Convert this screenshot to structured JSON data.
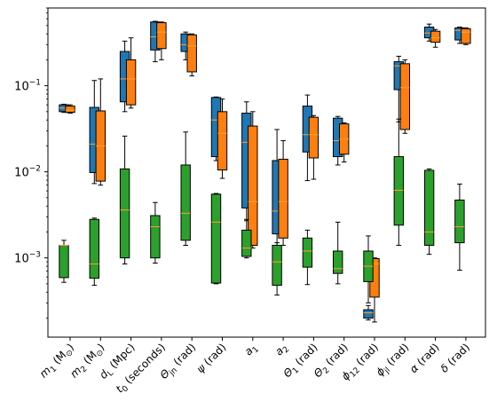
{
  "chart_data": {
    "type": "boxplot",
    "y_scale": "log",
    "ylim": [
      0.00012,
      0.8
    ],
    "y_ticks": [
      {
        "value": 0.001,
        "label_base": "10",
        "label_exp": "−3"
      },
      {
        "value": 0.01,
        "label_base": "10",
        "label_exp": "−2"
      },
      {
        "value": 0.1,
        "label_base": "10",
        "label_exp": "−1"
      }
    ],
    "grid": false,
    "legend": "none",
    "colors": {
      "series_a": "#1f77b4",
      "series_b": "#ff7f0e",
      "series_c": "#2ca02c",
      "median": "#ff9f2e",
      "frame": "#000000"
    },
    "categories": [
      {
        "main": "m",
        "sub": "1",
        "unit": "(M",
        "unit_sub": "⊙",
        "unit_end": ")"
      },
      {
        "main": "m",
        "sub": "2",
        "unit": "(M",
        "unit_sub": "⊙",
        "unit_end": ")"
      },
      {
        "main": "d",
        "sub": "L",
        "unit": "(Mpc)",
        "unit_sub": "",
        "unit_end": ""
      },
      {
        "main": "t",
        "sub": "0",
        "unit": "(seconds)",
        "unit_sub": "",
        "unit_end": ""
      },
      {
        "main": "Θ",
        "sub": "jn",
        "unit": "(rad)",
        "unit_sub": "",
        "unit_end": ""
      },
      {
        "main": "ψ",
        "sub": "",
        "unit": "(rad)",
        "unit_sub": "",
        "unit_end": ""
      },
      {
        "main": "a",
        "sub": "1",
        "unit": "",
        "unit_sub": "",
        "unit_end": ""
      },
      {
        "main": "a",
        "sub": "2",
        "unit": "",
        "unit_sub": "",
        "unit_end": ""
      },
      {
        "main": "Θ",
        "sub": "1",
        "unit": "(rad)",
        "unit_sub": "",
        "unit_end": ""
      },
      {
        "main": "Θ",
        "sub": "2",
        "unit": "(rad)",
        "unit_sub": "",
        "unit_end": ""
      },
      {
        "main": "ϕ",
        "sub": "12",
        "unit": "(rad)",
        "unit_sub": "",
        "unit_end": ""
      },
      {
        "main": "ϕ",
        "sub": "jl",
        "unit": "(rad)",
        "unit_sub": "",
        "unit_end": ""
      },
      {
        "main": "α",
        "sub": "",
        "unit": "(rad)",
        "unit_sub": "",
        "unit_end": ""
      },
      {
        "main": "δ",
        "sub": "",
        "unit": "(rad)",
        "unit_sub": "",
        "unit_end": ""
      }
    ],
    "series": [
      {
        "color_key": "series_a",
        "boxes": [
          {
            "cat": 0,
            "min": 0.049,
            "q1": 0.05,
            "med": 0.055,
            "q3": 0.06,
            "max": 0.061
          },
          {
            "cat": 1,
            "min": 0.0073,
            "q1": 0.0098,
            "med": 0.021,
            "q3": 0.056,
            "max": 0.115
          },
          {
            "cat": 2,
            "min": 0.05,
            "q1": 0.065,
            "med": 0.12,
            "q3": 0.25,
            "max": 0.33
          },
          {
            "cat": 3,
            "min": 0.19,
            "q1": 0.26,
            "med": 0.37,
            "q3": 0.55,
            "max": 0.56
          },
          {
            "cat": 4,
            "min": 0.2,
            "q1": 0.25,
            "med": 0.3,
            "q3": 0.4,
            "max": 0.42
          },
          {
            "cat": 5,
            "min": 0.0135,
            "q1": 0.015,
            "med": 0.04,
            "q3": 0.073,
            "max": 0.074
          },
          {
            "cat": 6,
            "min": 0.0027,
            "q1": 0.0038,
            "med": 0.022,
            "q3": 0.048,
            "max": 0.065
          },
          {
            "cat": 7,
            "min": 0.0013,
            "q1": 0.0019,
            "med": 0.0035,
            "q3": 0.0135,
            "max": 0.031
          },
          {
            "cat": 8,
            "min": 0.0079,
            "q1": 0.017,
            "med": 0.027,
            "q3": 0.058,
            "max": 0.078
          },
          {
            "cat": 9,
            "min": 0.012,
            "q1": 0.015,
            "med": 0.023,
            "q3": 0.042,
            "max": 0.044
          },
          {
            "cat": 10,
            "min": 0.00019,
            "q1": 0.0002,
            "med": 0.00023,
            "q3": 0.00025,
            "max": 0.00028
          },
          {
            "cat": 11,
            "min": 0.038,
            "q1": 0.09,
            "med": 0.17,
            "q3": 0.19,
            "max": 0.22
          },
          {
            "cat": 12,
            "min": 0.33,
            "q1": 0.36,
            "med": 0.41,
            "q3": 0.48,
            "max": 0.52
          },
          {
            "cat": 13,
            "min": 0.31,
            "q1": 0.34,
            "med": 0.44,
            "q3": 0.47,
            "max": 0.48
          }
        ]
      },
      {
        "color_key": "series_b",
        "boxes": [
          {
            "cat": 0,
            "min": 0.048,
            "q1": 0.049,
            "med": 0.052,
            "q3": 0.058,
            "max": 0.06
          },
          {
            "cat": 1,
            "min": 0.007,
            "q1": 0.0078,
            "med": 0.02,
            "q3": 0.051,
            "max": 0.12
          },
          {
            "cat": 2,
            "min": 0.055,
            "q1": 0.06,
            "med": 0.12,
            "q3": 0.2,
            "max": 0.36
          },
          {
            "cat": 3,
            "min": 0.2,
            "q1": 0.27,
            "med": 0.42,
            "q3": 0.54,
            "max": 0.55
          },
          {
            "cat": 4,
            "min": 0.13,
            "q1": 0.145,
            "med": 0.29,
            "q3": 0.39,
            "max": 0.4
          },
          {
            "cat": 5,
            "min": 0.0084,
            "q1": 0.0105,
            "med": 0.028,
            "q3": 0.05,
            "max": 0.07
          },
          {
            "cat": 6,
            "min": 0.0013,
            "q1": 0.0014,
            "med": 0.0045,
            "q3": 0.034,
            "max": 0.05
          },
          {
            "cat": 7,
            "min": 0.0014,
            "q1": 0.0017,
            "med": 0.0045,
            "q3": 0.014,
            "max": 0.023
          },
          {
            "cat": 8,
            "min": 0.0082,
            "q1": 0.0145,
            "med": 0.027,
            "q3": 0.043,
            "max": 0.045
          },
          {
            "cat": 9,
            "min": 0.013,
            "q1": 0.016,
            "med": 0.024,
            "q3": 0.036,
            "max": 0.037
          },
          {
            "cat": 10,
            "min": 0.00018,
            "q1": 0.00035,
            "med": 0.00085,
            "q3": 0.00098,
            "max": 0.001
          },
          {
            "cat": 11,
            "min": 0.028,
            "q1": 0.031,
            "med": 0.095,
            "q3": 0.18,
            "max": 0.2
          },
          {
            "cat": 12,
            "min": 0.28,
            "q1": 0.32,
            "med": 0.36,
            "q3": 0.43,
            "max": 0.45
          },
          {
            "cat": 13,
            "min": 0.3,
            "q1": 0.31,
            "med": 0.42,
            "q3": 0.46,
            "max": 0.47
          }
        ]
      },
      {
        "color_key": "series_c",
        "boxes": [
          {
            "cat": 0,
            "min": 0.00052,
            "q1": 0.00059,
            "med": 0.0014,
            "q3": 0.0014,
            "max": 0.0016
          },
          {
            "cat": 1,
            "min": 0.00048,
            "q1": 0.00058,
            "med": 0.00085,
            "q3": 0.0028,
            "max": 0.0029
          },
          {
            "cat": 2,
            "min": 0.00085,
            "q1": 0.001,
            "med": 0.0036,
            "q3": 0.0108,
            "max": 0.026
          },
          {
            "cat": 3,
            "min": 0.00087,
            "q1": 0.001,
            "med": 0.0023,
            "q3": 0.0031,
            "max": 0.0044
          },
          {
            "cat": 4,
            "min": 0.0014,
            "q1": 0.0016,
            "med": 0.0033,
            "q3": 0.012,
            "max": 0.029
          },
          {
            "cat": 5,
            "min": 0.0005,
            "q1": 0.00051,
            "med": 0.0026,
            "q3": 0.0055,
            "max": 0.0056
          },
          {
            "cat": 6,
            "min": 0.001,
            "q1": 0.00104,
            "med": 0.0013,
            "q3": 0.0021,
            "max": 0.0028
          },
          {
            "cat": 7,
            "min": 0.00037,
            "q1": 0.00048,
            "med": 0.0009,
            "q3": 0.0014,
            "max": 0.0015
          },
          {
            "cat": 8,
            "min": 0.00049,
            "q1": 0.00078,
            "med": 0.0012,
            "q3": 0.0017,
            "max": 0.0021
          },
          {
            "cat": 9,
            "min": 0.0005,
            "q1": 0.00066,
            "med": 0.00075,
            "q3": 0.0012,
            "max": 0.0026
          },
          {
            "cat": 10,
            "min": 0.0003,
            "q1": 0.00053,
            "med": 0.0008,
            "q3": 0.0012,
            "max": 0.0018
          },
          {
            "cat": 11,
            "min": 0.0014,
            "q1": 0.0024,
            "med": 0.0061,
            "q3": 0.015,
            "max": 0.041
          },
          {
            "cat": 12,
            "min": 0.0011,
            "q1": 0.0014,
            "med": 0.002,
            "q3": 0.0104,
            "max": 0.0108
          },
          {
            "cat": 13,
            "min": 0.00072,
            "q1": 0.0015,
            "med": 0.0023,
            "q3": 0.0047,
            "max": 0.0072
          }
        ]
      }
    ]
  }
}
